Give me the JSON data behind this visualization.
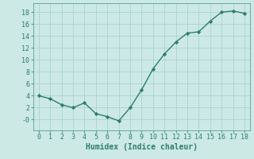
{
  "x": [
    0,
    1,
    2,
    3,
    4,
    5,
    6,
    7,
    8,
    9,
    10,
    11,
    12,
    13,
    14,
    15,
    16,
    17,
    18
  ],
  "y": [
    4.0,
    3.5,
    2.5,
    2.0,
    2.8,
    1.0,
    0.5,
    -0.2,
    2.0,
    5.0,
    8.5,
    11.0,
    13.0,
    14.5,
    14.7,
    16.5,
    18.0,
    18.2,
    17.8
  ],
  "line_color": "#2e7d6e",
  "marker": "D",
  "marker_size": 2.2,
  "bg_color": "#cce9e5",
  "grid_color": "#aad4cf",
  "xlabel": "Humidex (Indice chaleur)",
  "xlim": [
    -0.5,
    18.5
  ],
  "ylim": [
    -1.8,
    19.5
  ],
  "xticks": [
    0,
    1,
    2,
    3,
    4,
    5,
    6,
    7,
    8,
    9,
    10,
    11,
    12,
    13,
    14,
    15,
    16,
    17,
    18
  ],
  "yticks": [
    0,
    2,
    4,
    6,
    8,
    10,
    12,
    14,
    16,
    18
  ],
  "ytick_labels": [
    "-0",
    "2",
    "4",
    "6",
    "8",
    "10",
    "12",
    "14",
    "16",
    "18"
  ],
  "tick_fontsize": 6.0,
  "xlabel_fontsize": 7.0,
  "line_width": 1.0
}
